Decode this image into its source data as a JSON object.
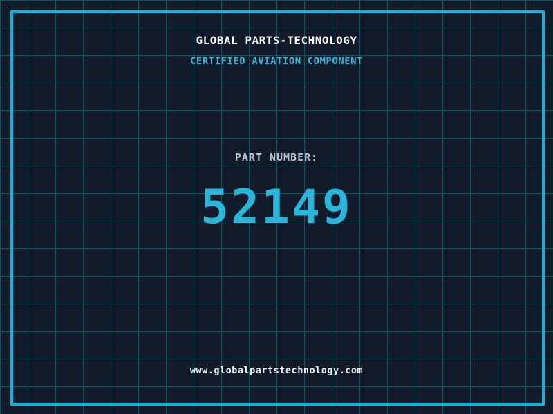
{
  "header": {
    "title": "GLOBAL PARTS-TECHNOLOGY",
    "subtitle": "CERTIFIED AVIATION COMPONENT"
  },
  "part": {
    "label": "PART NUMBER:",
    "number": "52149"
  },
  "footer": {
    "website": "www.globalpartstechnology.com"
  },
  "colors": {
    "background": "#111b2a",
    "grid_line": "#1d4f63",
    "frame_border": "#06b4dc",
    "title_text": "#fafafa",
    "subtitle_text": "#38b6dc",
    "part_label_text": "#b9c3cb",
    "part_number_text": "#2ab6da",
    "website_text": "#eef2f4"
  }
}
